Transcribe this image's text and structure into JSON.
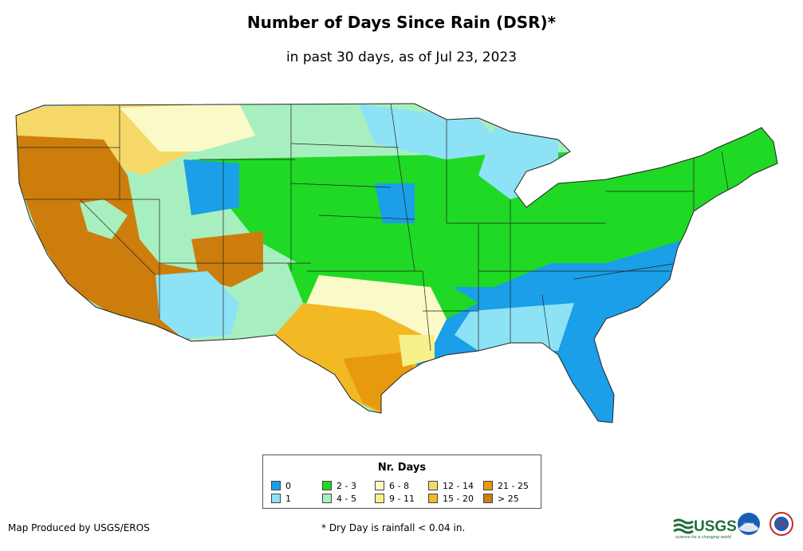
{
  "header": {
    "title": "Number of Days Since Rain (DSR)*",
    "subtitle": "in past 30 days, as of Jul 23, 2023"
  },
  "legend": {
    "title": "Nr. Days",
    "items": [
      {
        "label": "0",
        "color": "#1a9fe8"
      },
      {
        "label": "1",
        "color": "#8de2f5"
      },
      {
        "label": "2 - 3",
        "color": "#1fd924"
      },
      {
        "label": "4 - 5",
        "color": "#a8efc0"
      },
      {
        "label": "6 - 8",
        "color": "#fafac8"
      },
      {
        "label": "9 - 11",
        "color": "#f8f08a"
      },
      {
        "label": "12 - 14",
        "color": "#f6d868"
      },
      {
        "label": "15 - 20",
        "color": "#f2b925"
      },
      {
        "label": "21 - 25",
        "color": "#e89a0e"
      },
      {
        "label": "> 25",
        "color": "#cc7d0c"
      }
    ]
  },
  "footer": {
    "credit": "Map Produced by USGS/EROS",
    "footnote": "* Dry Day is rainfall < 0.04 in."
  },
  "logos": {
    "usgs": "USGS",
    "usgs_tagline": "science for a changing world",
    "noaa": "noaa"
  }
}
